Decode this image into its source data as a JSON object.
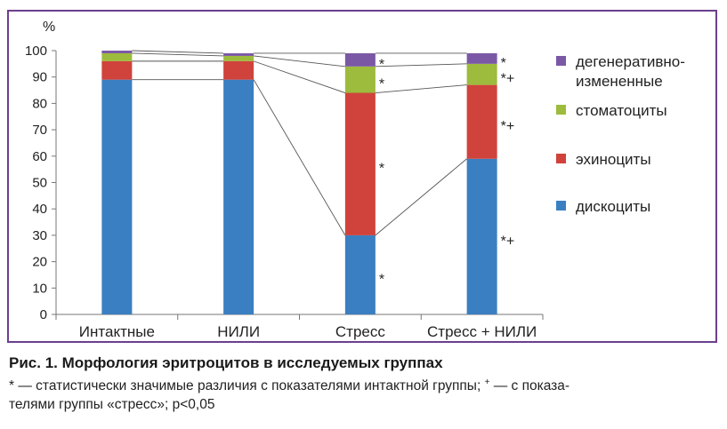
{
  "chart_data": {
    "type": "bar",
    "stacked": true,
    "ylabel": "%",
    "ylim": [
      0,
      100
    ],
    "yticks": [
      0,
      10,
      20,
      30,
      40,
      50,
      60,
      70,
      80,
      90,
      100
    ],
    "grid": false,
    "legend_position": "right",
    "categories": [
      "Интактные",
      "НИЛИ",
      "Стресс",
      "Стресс + НИЛИ"
    ],
    "series": [
      {
        "name": "дискоциты",
        "color": "#3a7fc1",
        "values": [
          89,
          89,
          30,
          59
        ],
        "marks": [
          "",
          "",
          "*",
          "*+"
        ]
      },
      {
        "name": "эхиноциты",
        "color": "#d0423c",
        "values": [
          7,
          7,
          54,
          28
        ],
        "marks": [
          "",
          "",
          "*",
          "*+"
        ]
      },
      {
        "name": "стоматоциты",
        "color": "#9dbb3c",
        "values": [
          3,
          2,
          10,
          8
        ],
        "marks": [
          "",
          "",
          "*",
          "*+"
        ]
      },
      {
        "name": "дегенеративно-измененные",
        "color": "#7b58a6",
        "values": [
          1,
          1,
          5,
          4
        ],
        "marks": [
          "",
          "",
          "*",
          "*"
        ]
      }
    ]
  },
  "legend": {
    "degenerative_line1": "дегенеративно-",
    "degenerative_line2": "измененные",
    "stomatocytes": "стоматоциты",
    "echinocytes": "эхиноциты",
    "discocytes": "дискоциты"
  },
  "caption": {
    "title": "Рис. 1. Морфология эритроцитов в исследуемых группах",
    "note_star": "* — статистически значимые различия с показателями интактной группы; ",
    "note_plus_sup": "+",
    "note_rest_line1": " — с показа-",
    "note_line2": "телями группы «стресс»; p<0,05"
  }
}
